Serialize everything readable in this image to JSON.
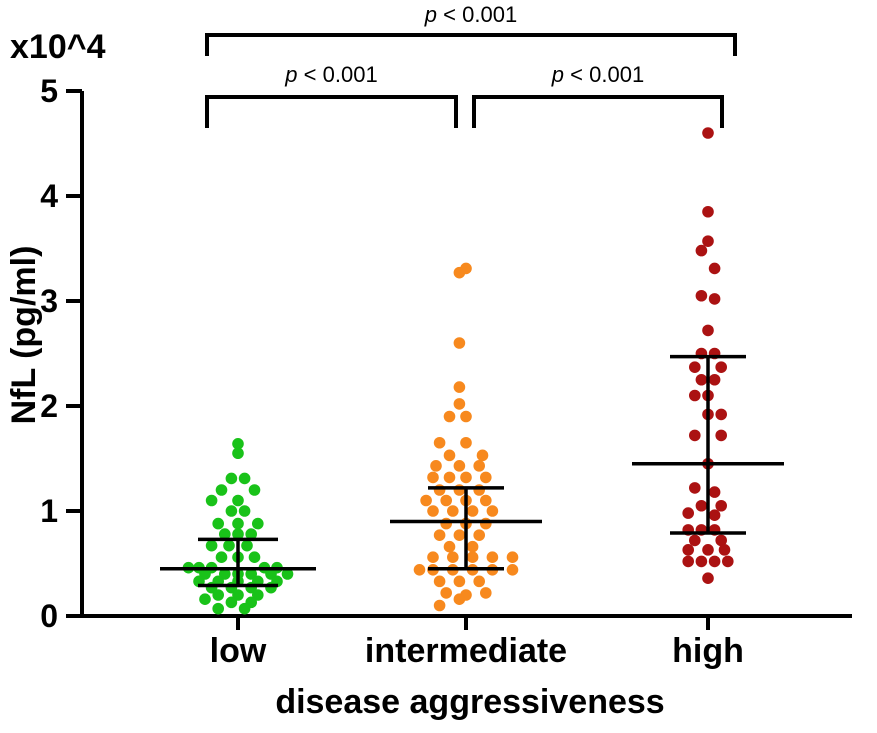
{
  "chart_data": {
    "type": "scatter",
    "title": "",
    "multiplier": "x10^4",
    "ylabel": "NfL  (pg/ml)",
    "xlabel": "disease aggressiveness",
    "ylim": [
      0,
      5
    ],
    "yticks": [
      {
        "value": 0,
        "label": "0"
      },
      {
        "value": 1,
        "label": "1"
      },
      {
        "value": 2,
        "label": "2"
      },
      {
        "value": 3,
        "label": "3"
      },
      {
        "value": 4,
        "label": "4"
      },
      {
        "value": 5,
        "label": "5"
      }
    ],
    "categories": [
      "low",
      "intermediate",
      "high"
    ],
    "series": [
      {
        "name": "low",
        "color": "#19c219",
        "median": 0.45,
        "q1": 0.29,
        "q3": 0.73,
        "points": [
          {
            "offset": 0.0,
            "value": 1.64
          },
          {
            "offset": 0.0,
            "value": 1.55
          },
          {
            "offset": -0.22,
            "value": 1.31
          },
          {
            "offset": 0.22,
            "value": 1.31
          },
          {
            "offset": -0.55,
            "value": 1.2
          },
          {
            "offset": 0.55,
            "value": 1.2
          },
          {
            "offset": -0.88,
            "value": 1.1
          },
          {
            "offset": 0.0,
            "value": 1.1
          },
          {
            "offset": -0.22,
            "value": 1.0
          },
          {
            "offset": 0.22,
            "value": 1.0
          },
          {
            "offset": -0.66,
            "value": 0.88
          },
          {
            "offset": 0.0,
            "value": 0.88
          },
          {
            "offset": 0.66,
            "value": 0.88
          },
          {
            "offset": -0.44,
            "value": 0.78
          },
          {
            "offset": 0.0,
            "value": 0.78
          },
          {
            "offset": 0.44,
            "value": 0.78
          },
          {
            "offset": -0.88,
            "value": 0.67
          },
          {
            "offset": -0.3,
            "value": 0.67
          },
          {
            "offset": 0.3,
            "value": 0.67
          },
          {
            "offset": -0.55,
            "value": 0.56
          },
          {
            "offset": 0.0,
            "value": 0.56
          },
          {
            "offset": 0.55,
            "value": 0.56
          },
          {
            "offset": -1.65,
            "value": 0.46
          },
          {
            "offset": -1.3,
            "value": 0.46
          },
          {
            "offset": -0.88,
            "value": 0.46
          },
          {
            "offset": 0.88,
            "value": 0.46
          },
          {
            "offset": 1.3,
            "value": 0.46
          },
          {
            "offset": -1.1,
            "value": 0.4
          },
          {
            "offset": -0.44,
            "value": 0.4
          },
          {
            "offset": 0.0,
            "value": 0.4
          },
          {
            "offset": 0.44,
            "value": 0.4
          },
          {
            "offset": 1.1,
            "value": 0.4
          },
          {
            "offset": 1.65,
            "value": 0.4
          },
          {
            "offset": -1.3,
            "value": 0.33
          },
          {
            "offset": -0.66,
            "value": 0.33
          },
          {
            "offset": 0.0,
            "value": 0.33
          },
          {
            "offset": 0.66,
            "value": 0.33
          },
          {
            "offset": 1.3,
            "value": 0.33
          },
          {
            "offset": -0.88,
            "value": 0.27
          },
          {
            "offset": -0.22,
            "value": 0.27
          },
          {
            "offset": 0.44,
            "value": 0.27
          },
          {
            "offset": 1.1,
            "value": 0.27
          },
          {
            "offset": -0.66,
            "value": 0.2
          },
          {
            "offset": 0.0,
            "value": 0.2
          },
          {
            "offset": 0.66,
            "value": 0.2
          },
          {
            "offset": -1.1,
            "value": 0.16
          },
          {
            "offset": -0.22,
            "value": 0.13
          },
          {
            "offset": 0.44,
            "value": 0.13
          },
          {
            "offset": -0.66,
            "value": 0.07
          },
          {
            "offset": 0.22,
            "value": 0.07
          }
        ]
      },
      {
        "name": "intermediate",
        "color": "#f7891e",
        "median": 0.9,
        "q1": 0.45,
        "q3": 1.22,
        "points": [
          {
            "offset": -0.22,
            "value": 3.27
          },
          {
            "offset": 0.0,
            "value": 3.31
          },
          {
            "offset": -0.22,
            "value": 2.6
          },
          {
            "offset": -0.22,
            "value": 2.18
          },
          {
            "offset": -0.22,
            "value": 2.02
          },
          {
            "offset": -0.55,
            "value": 1.9
          },
          {
            "offset": 0.0,
            "value": 1.9
          },
          {
            "offset": -0.88,
            "value": 1.65
          },
          {
            "offset": 0.0,
            "value": 1.65
          },
          {
            "offset": -0.55,
            "value": 1.53
          },
          {
            "offset": 0.55,
            "value": 1.53
          },
          {
            "offset": -1.0,
            "value": 1.43
          },
          {
            "offset": -0.22,
            "value": 1.43
          },
          {
            "offset": 0.44,
            "value": 1.43
          },
          {
            "offset": -1.1,
            "value": 1.32
          },
          {
            "offset": -0.55,
            "value": 1.32
          },
          {
            "offset": 0.0,
            "value": 1.32
          },
          {
            "offset": 0.66,
            "value": 1.32
          },
          {
            "offset": -0.88,
            "value": 1.2
          },
          {
            "offset": -0.22,
            "value": 1.2
          },
          {
            "offset": 0.44,
            "value": 1.2
          },
          {
            "offset": -1.33,
            "value": 1.1
          },
          {
            "offset": -0.66,
            "value": 1.1
          },
          {
            "offset": 0.0,
            "value": 1.1
          },
          {
            "offset": 0.66,
            "value": 1.1
          },
          {
            "offset": -1.1,
            "value": 1.0
          },
          {
            "offset": -0.44,
            "value": 1.0
          },
          {
            "offset": 0.22,
            "value": 1.0
          },
          {
            "offset": 0.88,
            "value": 1.0
          },
          {
            "offset": -0.66,
            "value": 0.88
          },
          {
            "offset": 0.0,
            "value": 0.88
          },
          {
            "offset": 0.66,
            "value": 0.88
          },
          {
            "offset": -0.88,
            "value": 0.77
          },
          {
            "offset": -0.22,
            "value": 0.77
          },
          {
            "offset": 0.44,
            "value": 0.77
          },
          {
            "offset": -0.55,
            "value": 0.66
          },
          {
            "offset": 0.22,
            "value": 0.66
          },
          {
            "offset": -1.1,
            "value": 0.56
          },
          {
            "offset": -0.44,
            "value": 0.56
          },
          {
            "offset": 0.22,
            "value": 0.56
          },
          {
            "offset": 0.88,
            "value": 0.56
          },
          {
            "offset": 1.55,
            "value": 0.56
          },
          {
            "offset": -1.55,
            "value": 0.44
          },
          {
            "offset": -1.1,
            "value": 0.44
          },
          {
            "offset": -0.44,
            "value": 0.44
          },
          {
            "offset": 0.22,
            "value": 0.44
          },
          {
            "offset": 0.88,
            "value": 0.44
          },
          {
            "offset": 1.55,
            "value": 0.44
          },
          {
            "offset": -0.88,
            "value": 0.33
          },
          {
            "offset": -0.22,
            "value": 0.33
          },
          {
            "offset": 0.44,
            "value": 0.33
          },
          {
            "offset": -0.66,
            "value": 0.22
          },
          {
            "offset": 0.0,
            "value": 0.2
          },
          {
            "offset": 0.66,
            "value": 0.22
          },
          {
            "offset": -0.88,
            "value": 0.1
          },
          {
            "offset": -0.22,
            "value": 0.16
          }
        ]
      },
      {
        "name": "high",
        "color": "#ab1212",
        "median": 1.45,
        "q1": 0.79,
        "q3": 2.47,
        "points": [
          {
            "offset": 0.0,
            "value": 4.6
          },
          {
            "offset": 0.0,
            "value": 3.85
          },
          {
            "offset": 0.0,
            "value": 3.57
          },
          {
            "offset": -0.22,
            "value": 3.48
          },
          {
            "offset": 0.22,
            "value": 3.31
          },
          {
            "offset": -0.22,
            "value": 3.05
          },
          {
            "offset": 0.22,
            "value": 3.02
          },
          {
            "offset": 0.0,
            "value": 2.72
          },
          {
            "offset": -0.22,
            "value": 2.5
          },
          {
            "offset": 0.22,
            "value": 2.5
          },
          {
            "offset": -0.44,
            "value": 2.37
          },
          {
            "offset": 0.44,
            "value": 2.37
          },
          {
            "offset": -0.22,
            "value": 2.25
          },
          {
            "offset": 0.22,
            "value": 2.25
          },
          {
            "offset": 0.0,
            "value": 2.1
          },
          {
            "offset": -0.44,
            "value": 2.1
          },
          {
            "offset": 0.0,
            "value": 1.92
          },
          {
            "offset": 0.44,
            "value": 1.92
          },
          {
            "offset": -0.44,
            "value": 1.72
          },
          {
            "offset": 0.44,
            "value": 1.72
          },
          {
            "offset": 0.0,
            "value": 1.45
          },
          {
            "offset": -0.44,
            "value": 1.22
          },
          {
            "offset": 0.22,
            "value": 1.18
          },
          {
            "offset": -0.22,
            "value": 1.05
          },
          {
            "offset": 0.44,
            "value": 1.05
          },
          {
            "offset": -0.66,
            "value": 0.98
          },
          {
            "offset": 0.22,
            "value": 0.96
          },
          {
            "offset": -0.66,
            "value": 0.82
          },
          {
            "offset": -0.22,
            "value": 0.82
          },
          {
            "offset": 0.22,
            "value": 0.82
          },
          {
            "offset": -0.44,
            "value": 0.72
          },
          {
            "offset": 0.44,
            "value": 0.72
          },
          {
            "offset": -0.66,
            "value": 0.63
          },
          {
            "offset": 0.0,
            "value": 0.63
          },
          {
            "offset": 0.55,
            "value": 0.63
          },
          {
            "offset": -0.66,
            "value": 0.52
          },
          {
            "offset": -0.22,
            "value": 0.52
          },
          {
            "offset": 0.22,
            "value": 0.52
          },
          {
            "offset": 0.66,
            "value": 0.52
          },
          {
            "offset": 0.0,
            "value": 0.36
          }
        ]
      }
    ],
    "comparisons": [
      {
        "from": "low",
        "to": "intermediate",
        "label": "p < 0.001"
      },
      {
        "from": "intermediate",
        "to": "high",
        "label": "p < 0.001"
      },
      {
        "from": "low",
        "to": "high",
        "label": "p < 0.001"
      }
    ]
  }
}
